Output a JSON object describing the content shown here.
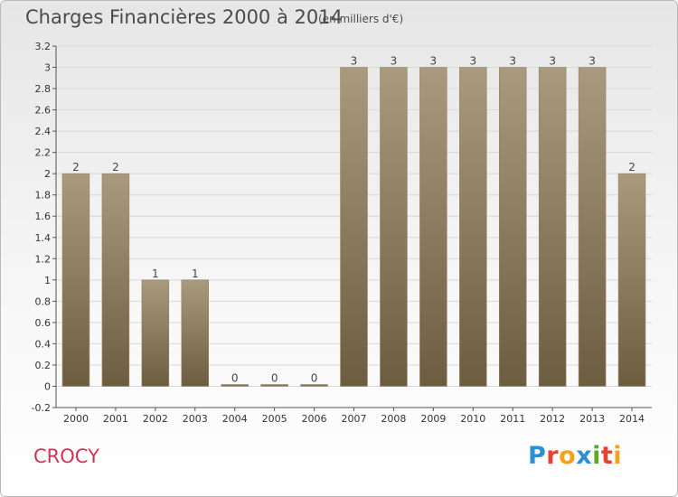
{
  "header": {
    "title": "Charges Financières 2000 à 2014",
    "subtitle": "(en milliers d'€)"
  },
  "footer": {
    "commune": "CROCY",
    "logo_text": "Proxiti",
    "logo_colors": [
      "#2c8fd6",
      "#e8412f",
      "#f4a21d",
      "#2c8fd6",
      "#5aa82c",
      "#e8412f",
      "#f4a21d"
    ]
  },
  "colors": {
    "bar_top": "#a99a7d",
    "bar_bottom": "#6d5d40",
    "axis": "#555555",
    "grid": "#d8d8d8",
    "title": "#4a4a4a",
    "commune": "#d0335a"
  },
  "chart_data": {
    "type": "bar",
    "categories": [
      "2000",
      "2001",
      "2002",
      "2003",
      "2004",
      "2005",
      "2006",
      "2007",
      "2008",
      "2009",
      "2010",
      "2011",
      "2012",
      "2013",
      "2014"
    ],
    "values": [
      2,
      2,
      1,
      1,
      0,
      0,
      0,
      3,
      3,
      3,
      3,
      3,
      3,
      3,
      2
    ],
    "data_labels": [
      "2",
      "2",
      "1",
      "1",
      "0",
      "0",
      "0",
      "3",
      "3",
      "3",
      "3",
      "3",
      "3",
      "3",
      "2"
    ],
    "title": "Charges Financières 2000 à 2014",
    "ylabel": "",
    "xlabel": "",
    "ylim": [
      -0.2,
      3.2
    ],
    "yticks": [
      -0.2,
      0,
      0.2,
      0.4,
      0.6,
      0.8,
      1,
      1.2,
      1.4,
      1.6,
      1.8,
      2,
      2.2,
      2.4,
      2.6,
      2.8,
      3,
      3.2
    ],
    "ytick_labels": [
      "-0.2",
      "0",
      "0.2",
      "0.4",
      "0.6",
      "0.8",
      "1",
      "1.2",
      "1.4",
      "1.6",
      "1.8",
      "2",
      "2.2",
      "2.4",
      "2.6",
      "2.8",
      "3",
      "3.2"
    ],
    "grid": true
  }
}
